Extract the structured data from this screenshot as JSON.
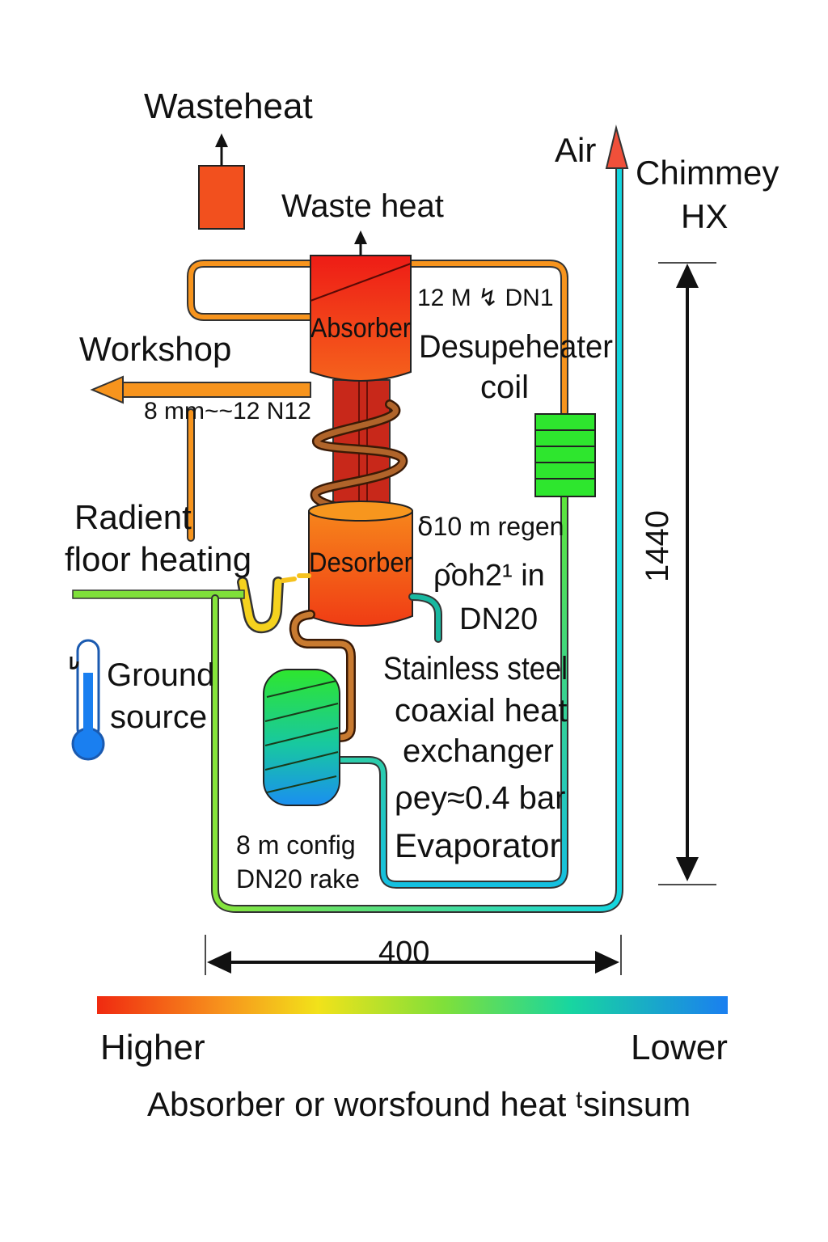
{
  "labels": {
    "wasteheat_top": "Wasteheat",
    "waste_heat": "Waste heat",
    "air": "Air",
    "chimney_line1": "Chimmey",
    "chimney_line2": "HX",
    "absorber": "Absorber",
    "desorber": "Desorber",
    "workshop": "Workshop",
    "pipe_spec_workshop": "8 mm~~12 N12",
    "pipe_spec_absorber": "12 M ↯ DN1",
    "desuperheater_line1": "Desupeheater",
    "desuperheater_line2": "coil",
    "regen": "ẟ10 m regen",
    "poh_line1": "ρ̂oh2¹  in",
    "poh_line2": "DN20",
    "radiant_line1": "Radient",
    "radiant_line2": "floor heating",
    "ground_line1": "Ground",
    "ground_line2": "source",
    "coax_line1": "Stainless steel",
    "coax_line2": "coaxial heat",
    "coax_line3": "exchanger",
    "pressure": "ρey≈0.4 bar",
    "evaporator": "Evaporator",
    "config_line1": "8 m config",
    "config_line2": "DN20 rake",
    "dim_height": "1440",
    "dim_width": "400",
    "legend_high": "Higher",
    "legend_low": "Lower",
    "legend_caption": "Absorber or worsfound heat ᵗsinsum"
  },
  "colors": {
    "hot": "#f02a10",
    "warm_orange": "#f7941d",
    "yellow": "#f2e21a",
    "green": "#2ee62e",
    "cyan": "#14d6c8",
    "blue": "#1a7ff0",
    "brown": "#a05a1c"
  }
}
